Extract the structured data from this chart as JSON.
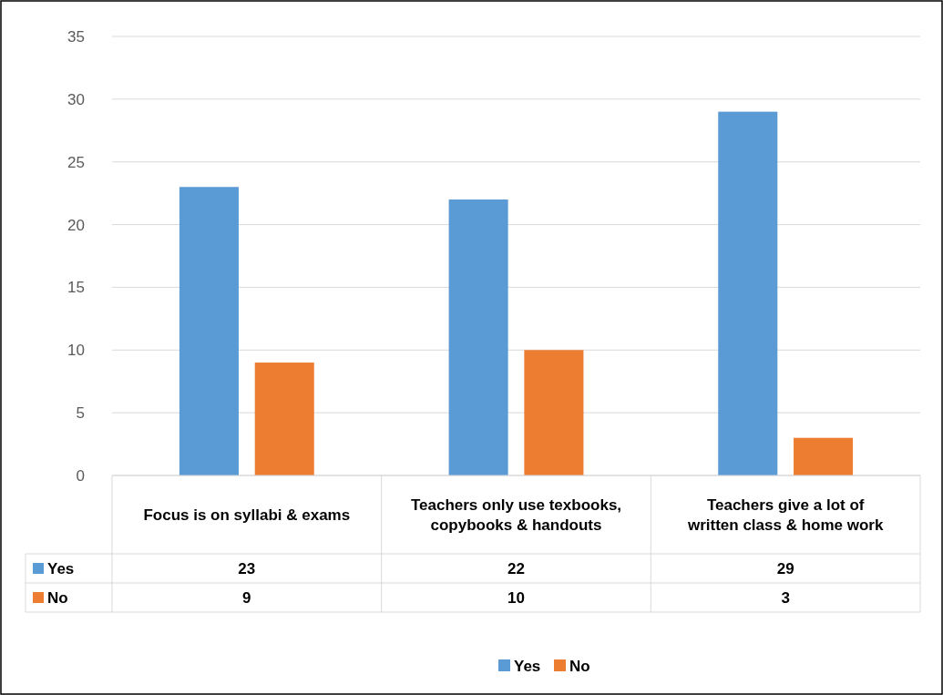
{
  "chart_data": {
    "type": "bar",
    "categories": [
      "Focus is on syllabi & exams",
      "Teachers only use texbooks, copybooks & handouts",
      "Teachers give a lot of written class & home work"
    ],
    "series": [
      {
        "name": "Yes",
        "color": "#5b9bd5",
        "values": [
          23,
          22,
          29
        ]
      },
      {
        "name": "No",
        "color": "#ed7d31",
        "values": [
          9,
          10,
          3
        ]
      }
    ],
    "ylim": [
      0,
      35
    ],
    "yticks": [
      0,
      5,
      10,
      15,
      20,
      25,
      30,
      35
    ],
    "grid": "y",
    "legend": "bottom",
    "data_labels": true
  }
}
